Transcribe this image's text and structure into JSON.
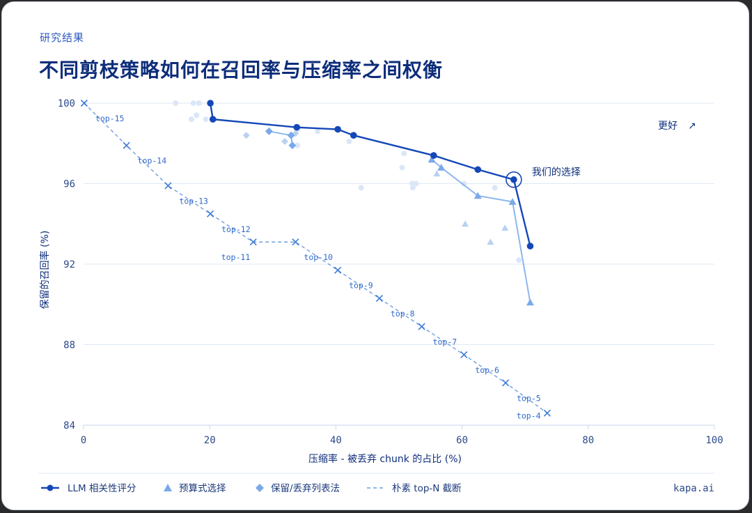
{
  "header": {
    "eyebrow": "研究结果",
    "title": "不同剪枝策略如何在召回率与压缩率之间权衡"
  },
  "brand": "kapa.ai",
  "better_label": "更好",
  "better_arrow": "↗",
  "our_choice_label": "我们的选择",
  "legend": [
    {
      "label": "LLM 相关性评分",
      "marker": "line-dot"
    },
    {
      "label": "预算式选择",
      "marker": "triangle"
    },
    {
      "label": "保留/丢弃列表法",
      "marker": "diamond"
    },
    {
      "label": "朴素 top-N 截断",
      "marker": "dashed"
    }
  ],
  "colors": {
    "llm": "#1447b8",
    "budget": "#8cb6ee",
    "keepdrop": "#8cb6ee",
    "naive": "#6d9ee0",
    "faint": "#dbe7f7",
    "grid": "#dfe8f5"
  },
  "chart_data": {
    "type": "scatter",
    "xlabel": "压缩率 - 被丢弃 chunk 的占比 (%)",
    "ylabel": "保留的召回率 (%)",
    "xlim": [
      0,
      100
    ],
    "ylim": [
      84,
      100
    ],
    "xticks": [
      "0",
      "20",
      "40",
      "60",
      "80",
      "100"
    ],
    "yticks": [
      "84",
      "88",
      "92",
      "96",
      "100"
    ],
    "grid": "horizontal",
    "series": [
      {
        "name": "LLM 相关性评分",
        "style": "line-dot",
        "points": [
          [
            20.1,
            100
          ],
          [
            20.5,
            99.2
          ],
          [
            33.8,
            98.8
          ],
          [
            40.3,
            98.7
          ],
          [
            42.8,
            98.4
          ],
          [
            55.5,
            97.4
          ],
          [
            62.5,
            96.7
          ],
          [
            68.2,
            96.2
          ],
          [
            70.8,
            92.9
          ]
        ]
      },
      {
        "name": "预算式选择",
        "style": "triangle-line",
        "points": [
          [
            55.2,
            97.2
          ],
          [
            56.7,
            96.8
          ],
          [
            62.5,
            95.4
          ],
          [
            68.0,
            95.1
          ],
          [
            70.8,
            90.1
          ]
        ],
        "extra_points": [
          [
            56.0,
            96.5
          ],
          [
            60.5,
            94.0
          ],
          [
            64.5,
            93.1
          ],
          [
            66.8,
            93.8
          ]
        ]
      },
      {
        "name": "保留/丢弃列表法",
        "style": "diamond-line",
        "points": [
          [
            29.4,
            98.6
          ],
          [
            32.9,
            98.4
          ],
          [
            33.1,
            97.9
          ]
        ],
        "extra_points": [
          [
            25.8,
            98.4
          ],
          [
            31.9,
            98.1
          ],
          [
            33.6,
            98.5
          ]
        ]
      },
      {
        "name": "朴素 top-N 截断",
        "style": "dashed-x",
        "points": [
          [
            0.1,
            100
          ],
          [
            6.8,
            97.9
          ],
          [
            13.4,
            95.9
          ],
          [
            20.1,
            94.5
          ],
          [
            26.9,
            93.1
          ],
          [
            33.6,
            93.1
          ],
          [
            40.3,
            91.7
          ],
          [
            46.9,
            90.3
          ],
          [
            53.6,
            88.9
          ],
          [
            60.3,
            87.5
          ],
          [
            66.9,
            86.1
          ],
          [
            73.5,
            84.6
          ]
        ],
        "labels": [
          "top-15",
          "top-14",
          "top-13",
          "top-12",
          "top-11",
          "top-10",
          "top-9",
          "top-8",
          "top-7",
          "top-6",
          "top-5",
          "top-4"
        ]
      },
      {
        "style": "faint",
        "points": [
          [
            14.6,
            100
          ],
          [
            17.4,
            100
          ],
          [
            18.3,
            100
          ],
          [
            17.1,
            99.2
          ],
          [
            17.9,
            99.4
          ],
          [
            19.4,
            99.2
          ],
          [
            34.0,
            98.7
          ],
          [
            33.9,
            97.9
          ],
          [
            37.1,
            98.6
          ],
          [
            42.1,
            98.1
          ],
          [
            44.0,
            95.8
          ],
          [
            50.8,
            97.5
          ],
          [
            50.5,
            96.8
          ],
          [
            52.1,
            96.0
          ],
          [
            52.2,
            95.8
          ],
          [
            52.7,
            96.0
          ],
          [
            60.3,
            96.0
          ],
          [
            65.2,
            95.8
          ],
          [
            69.0,
            92.2
          ]
        ]
      }
    ],
    "highlight": {
      "label": "我们的选择",
      "x": 68.2,
      "y": 96.2
    },
    "annotation": {
      "text": "更好",
      "arrow": "↗",
      "position": "top-right"
    }
  }
}
